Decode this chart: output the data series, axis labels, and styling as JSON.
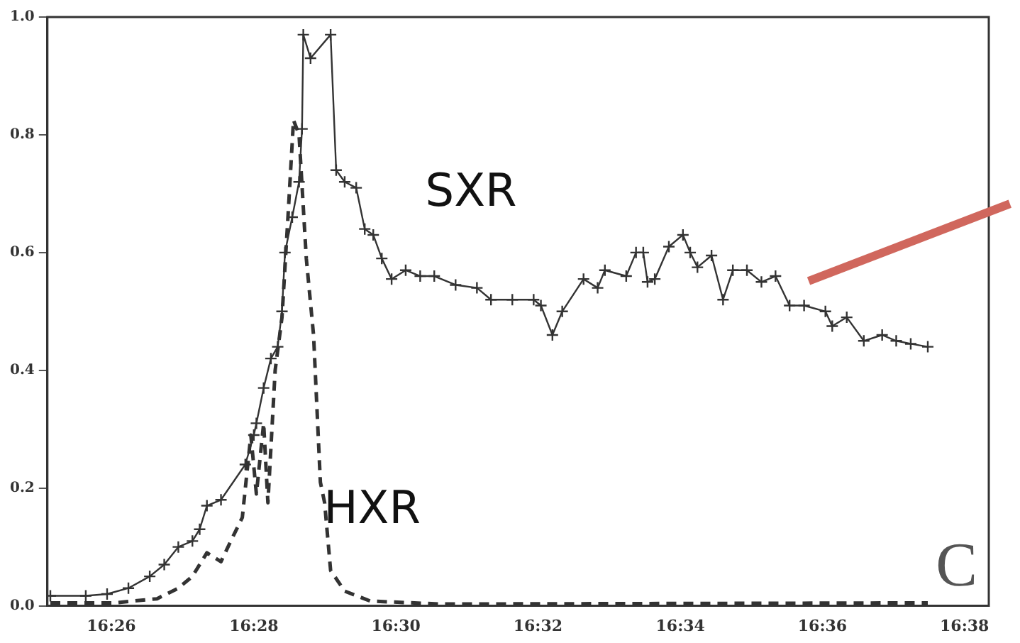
{
  "chart_data": {
    "type": "line",
    "xlim": [
      16.4183,
      16.639
    ],
    "ylim": [
      0,
      1
    ],
    "xticks": [
      {
        "value": 16.4333,
        "label": "16:26"
      },
      {
        "value": 16.4667,
        "label": "16:28"
      },
      {
        "value": 16.5,
        "label": "16:30"
      },
      {
        "value": 16.5333,
        "label": "16:32"
      },
      {
        "value": 16.5667,
        "label": "16:34"
      },
      {
        "value": 16.6,
        "label": "16:36"
      },
      {
        "value": 16.6333,
        "label": "16:38"
      }
    ],
    "yticks": [
      {
        "value": 0,
        "label": "0.0"
      },
      0.2,
      0.4,
      0.6,
      0.8,
      {
        "value": 1,
        "label": "1.0"
      }
    ],
    "grid": false,
    "legend": false,
    "annotations": [
      "C"
    ],
    "series": [
      {
        "name": "SXR",
        "color": "#333333",
        "marker": "cross",
        "line_style": "solid",
        "x": [
          16.419,
          16.4273,
          16.4323,
          16.4373,
          16.4423,
          16.4457,
          16.449,
          16.4523,
          16.454,
          16.4557,
          16.459,
          16.4647,
          16.4667,
          16.4673,
          16.469,
          16.4707,
          16.4723,
          16.4733,
          16.474,
          16.4757,
          16.4773,
          16.478,
          16.4783,
          16.48,
          16.4847,
          16.486,
          16.488,
          16.4907,
          16.4927,
          16.4947,
          16.4967,
          16.499,
          16.5023,
          16.5057,
          16.509,
          16.514,
          16.519,
          16.5223,
          16.5273,
          16.5323,
          16.534,
          16.5367,
          16.539,
          16.544,
          16.5473,
          16.549,
          16.554,
          16.5563,
          16.558,
          16.559,
          16.5607,
          16.564,
          16.5673,
          16.569,
          16.5707,
          16.574,
          16.5767,
          16.579,
          16.5823,
          16.5857,
          16.589,
          16.5923,
          16.5957,
          16.6007,
          16.6023,
          16.6057,
          16.6097,
          16.614,
          16.6173,
          16.6207,
          16.6247
        ],
        "values": [
          0.017,
          0.017,
          0.02,
          0.03,
          0.05,
          0.07,
          0.1,
          0.11,
          0.13,
          0.17,
          0.18,
          0.24,
          0.29,
          0.31,
          0.37,
          0.42,
          0.44,
          0.5,
          0.6,
          0.66,
          0.72,
          0.81,
          0.97,
          0.93,
          0.97,
          0.74,
          0.72,
          0.71,
          0.64,
          0.63,
          0.59,
          0.555,
          0.57,
          0.56,
          0.56,
          0.545,
          0.54,
          0.52,
          0.52,
          0.52,
          0.51,
          0.46,
          0.5,
          0.555,
          0.54,
          0.57,
          0.56,
          0.6,
          0.6,
          0.55,
          0.555,
          0.61,
          0.63,
          0.6,
          0.575,
          0.595,
          0.52,
          0.57,
          0.57,
          0.55,
          0.56,
          0.51,
          0.51,
          0.5,
          0.475,
          0.49,
          0.45,
          0.46,
          0.45,
          0.445,
          0.44
        ]
      },
      {
        "name": "HXR",
        "color": "#333333",
        "marker": "none",
        "line_style": "dashed",
        "x": [
          16.419,
          16.434,
          16.444,
          16.449,
          16.4523,
          16.4557,
          16.459,
          16.4613,
          16.464,
          16.466,
          16.4673,
          16.469,
          16.47,
          16.4717,
          16.4733,
          16.4747,
          16.476,
          16.4773,
          16.479,
          16.4807,
          16.4823,
          16.4833,
          16.4847,
          16.488,
          16.494,
          16.5107,
          16.5673,
          16.6247
        ],
        "values": [
          0.005,
          0.005,
          0.012,
          0.03,
          0.05,
          0.09,
          0.075,
          0.11,
          0.15,
          0.29,
          0.19,
          0.31,
          0.175,
          0.4,
          0.49,
          0.66,
          0.825,
          0.8,
          0.59,
          0.46,
          0.21,
          0.175,
          0.06,
          0.025,
          0.008,
          0.003,
          0.004,
          0.005
        ]
      }
    ]
  }
}
